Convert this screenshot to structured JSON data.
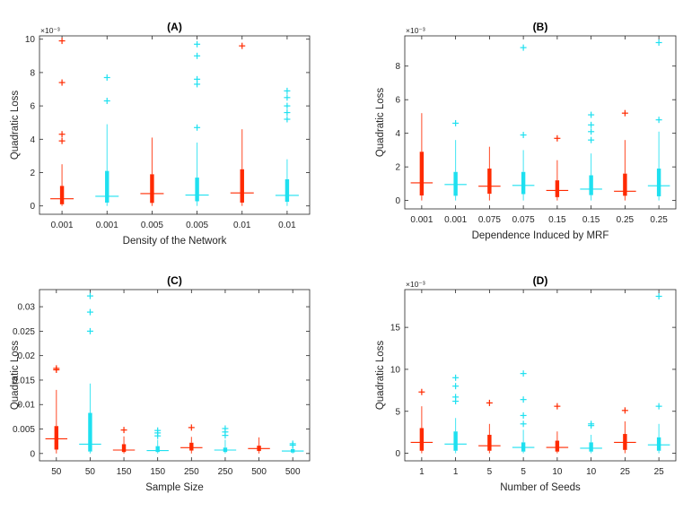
{
  "colors": {
    "red": "#ff2a00",
    "cyan": "#1ee0f0",
    "axis": "#262626",
    "background": "#ffffff"
  },
  "chart_data": [
    {
      "type": "box",
      "title": "(A)",
      "xlabel": "Density of the Network",
      "ylabel": "Quadratic Loss",
      "exponent_label": "×10⁻³",
      "ylim": [
        -0.0005,
        0.0102
      ],
      "yticks": [
        0,
        0.002,
        0.004,
        0.006,
        0.008,
        0.01
      ],
      "ytick_labels": [
        "0",
        "2",
        "4",
        "6",
        "8",
        "10"
      ],
      "categories": [
        "0.001",
        "0.001",
        "0.005",
        "0.005",
        "0.01",
        "0.01"
      ],
      "series_color_keys": [
        "red",
        "cyan",
        "red",
        "cyan",
        "red",
        "cyan"
      ],
      "boxes": [
        {
          "q1": 0.0001,
          "median": 0.00043,
          "q3": 0.0012,
          "wlo": 0.0,
          "whi": 0.0025,
          "outliers": [
            0.0099,
            0.0074,
            0.0043,
            0.0039
          ]
        },
        {
          "q1": 0.0002,
          "median": 0.00058,
          "q3": 0.0021,
          "wlo": 0.0,
          "whi": 0.0049,
          "outliers": [
            0.0077,
            0.0063
          ]
        },
        {
          "q1": 0.00018,
          "median": 0.00074,
          "q3": 0.0019,
          "wlo": 0.0,
          "whi": 0.0041,
          "outliers": []
        },
        {
          "q1": 0.00028,
          "median": 0.00065,
          "q3": 0.0017,
          "wlo": 0.0,
          "whi": 0.0038,
          "outliers": [
            0.0097,
            0.009,
            0.0076,
            0.0073,
            0.0047
          ]
        },
        {
          "q1": 0.0002,
          "median": 0.00078,
          "q3": 0.0022,
          "wlo": 0.0,
          "whi": 0.0046,
          "outliers": [
            0.0096
          ]
        },
        {
          "q1": 0.00025,
          "median": 0.00063,
          "q3": 0.0016,
          "wlo": 0.0,
          "whi": 0.0028,
          "outliers": [
            0.0069,
            0.0065,
            0.006,
            0.0056,
            0.0052
          ]
        }
      ]
    },
    {
      "type": "box",
      "title": "(B)",
      "xlabel": "Dependence Induced by MRF",
      "ylabel": "Quadratic Loss",
      "exponent_label": "×10⁻³",
      "ylim": [
        -0.0005,
        0.0098
      ],
      "yticks": [
        0,
        0.002,
        0.004,
        0.006,
        0.008
      ],
      "ytick_labels": [
        "0",
        "2",
        "4",
        "6",
        "8"
      ],
      "categories": [
        "0.001",
        "0.001",
        "0.075",
        "0.075",
        "0.15",
        "0.15",
        "0.25",
        "0.25"
      ],
      "series_color_keys": [
        "red",
        "cyan",
        "red",
        "cyan",
        "red",
        "cyan",
        "red",
        "cyan"
      ],
      "boxes": [
        {
          "q1": 0.0003,
          "median": 0.00105,
          "q3": 0.0029,
          "wlo": 0.0,
          "whi": 0.0052,
          "outliers": []
        },
        {
          "q1": 0.00028,
          "median": 0.00095,
          "q3": 0.0017,
          "wlo": 0.0,
          "whi": 0.0036,
          "outliers": [
            0.0046
          ]
        },
        {
          "q1": 0.0004,
          "median": 0.00085,
          "q3": 0.0019,
          "wlo": 0.0,
          "whi": 0.0032,
          "outliers": []
        },
        {
          "q1": 0.00038,
          "median": 0.0009,
          "q3": 0.0017,
          "wlo": 0.0,
          "whi": 0.003,
          "outliers": [
            0.0091,
            0.0039
          ]
        },
        {
          "q1": 0.0002,
          "median": 0.0006,
          "q3": 0.0012,
          "wlo": 0.0,
          "whi": 0.0024,
          "outliers": [
            0.0037
          ]
        },
        {
          "q1": 0.00032,
          "median": 0.00068,
          "q3": 0.0015,
          "wlo": 0.0,
          "whi": 0.0028,
          "outliers": [
            0.0051,
            0.0045,
            0.0041,
            0.0036
          ]
        },
        {
          "q1": 0.00028,
          "median": 0.00055,
          "q3": 0.0016,
          "wlo": 0.0,
          "whi": 0.0036,
          "outliers": [
            0.0052
          ]
        },
        {
          "q1": 0.00025,
          "median": 0.00088,
          "q3": 0.0019,
          "wlo": 0.0,
          "whi": 0.0041,
          "outliers": [
            0.0094,
            0.0048
          ]
        }
      ]
    },
    {
      "type": "box",
      "title": "(C)",
      "xlabel": "Sample Size",
      "ylabel": "Quadratic Loss",
      "exponent_label": "",
      "ylim": [
        -0.0015,
        0.0335
      ],
      "yticks": [
        0,
        0.005,
        0.01,
        0.015,
        0.02,
        0.025,
        0.03
      ],
      "ytick_labels": [
        "0",
        "0.005",
        "0.01",
        "0.015",
        "0.02",
        "0.025",
        "0.03"
      ],
      "categories": [
        "50",
        "50",
        "150",
        "150",
        "250",
        "250",
        "500",
        "500"
      ],
      "series_color_keys": [
        "red",
        "cyan",
        "red",
        "cyan",
        "red",
        "cyan",
        "red",
        "cyan"
      ],
      "boxes": [
        {
          "q1": 0.0008,
          "median": 0.003,
          "q3": 0.0056,
          "wlo": 0.0,
          "whi": 0.013,
          "outliers": [
            0.0174,
            0.0171
          ]
        },
        {
          "q1": 0.0004,
          "median": 0.0019,
          "q3": 0.0083,
          "wlo": 0.0,
          "whi": 0.0143,
          "outliers": [
            0.0322,
            0.0289,
            0.025
          ]
        },
        {
          "q1": 0.0003,
          "median": 0.0007,
          "q3": 0.0019,
          "wlo": 0.0,
          "whi": 0.0035,
          "outliers": [
            0.0048
          ]
        },
        {
          "q1": 0.0003,
          "median": 0.0006,
          "q3": 0.0015,
          "wlo": 0.0,
          "whi": 0.0028,
          "outliers": [
            0.0047,
            0.0042,
            0.0036
          ]
        },
        {
          "q1": 0.0006,
          "median": 0.0012,
          "q3": 0.0022,
          "wlo": 0.0,
          "whi": 0.0034,
          "outliers": [
            0.0053
          ]
        },
        {
          "q1": 0.0003,
          "median": 0.0007,
          "q3": 0.0012,
          "wlo": 0.0,
          "whi": 0.0028,
          "outliers": [
            0.0051,
            0.0044,
            0.0037
          ]
        },
        {
          "q1": 0.0005,
          "median": 0.001,
          "q3": 0.0016,
          "wlo": 0.0,
          "whi": 0.0033,
          "outliers": []
        },
        {
          "q1": 0.0002,
          "median": 0.0005,
          "q3": 0.0009,
          "wlo": 0.0,
          "whi": 0.0014,
          "outliers": [
            0.002,
            0.0017
          ]
        }
      ]
    },
    {
      "type": "box",
      "title": "(D)",
      "xlabel": "Number of Seeds",
      "ylabel": "Quadratic Loss",
      "exponent_label": "×10⁻³",
      "ylim": [
        -0.0009,
        0.0195
      ],
      "yticks": [
        0,
        0.005,
        0.01,
        0.015
      ],
      "ytick_labels": [
        "0",
        "5",
        "10",
        "15"
      ],
      "categories": [
        "1",
        "1",
        "5",
        "5",
        "10",
        "10",
        "25",
        "25"
      ],
      "series_color_keys": [
        "red",
        "cyan",
        "red",
        "cyan",
        "red",
        "cyan",
        "red",
        "cyan"
      ],
      "boxes": [
        {
          "q1": 0.0003,
          "median": 0.0013,
          "q3": 0.003,
          "wlo": 0.0,
          "whi": 0.0056,
          "outliers": [
            0.0073
          ]
        },
        {
          "q1": 0.0003,
          "median": 0.0011,
          "q3": 0.0026,
          "wlo": 0.0,
          "whi": 0.0042,
          "outliers": [
            0.009,
            0.008,
            0.0067,
            0.0062
          ]
        },
        {
          "q1": 0.0003,
          "median": 0.0009,
          "q3": 0.0022,
          "wlo": 0.0,
          "whi": 0.0035,
          "outliers": [
            0.006
          ]
        },
        {
          "q1": 0.0002,
          "median": 0.0007,
          "q3": 0.0013,
          "wlo": 0.0,
          "whi": 0.0028,
          "outliers": [
            0.0095,
            0.0064,
            0.0045,
            0.0035
          ]
        },
        {
          "q1": 0.0002,
          "median": 0.0007,
          "q3": 0.0015,
          "wlo": 0.0,
          "whi": 0.0026,
          "outliers": [
            0.0056
          ]
        },
        {
          "q1": 0.0002,
          "median": 0.0006,
          "q3": 0.0013,
          "wlo": 0.0,
          "whi": 0.0022,
          "outliers": [
            0.0035,
            0.0033
          ]
        },
        {
          "q1": 0.0004,
          "median": 0.0013,
          "q3": 0.0023,
          "wlo": 0.0,
          "whi": 0.0038,
          "outliers": [
            0.0051
          ]
        },
        {
          "q1": 0.0003,
          "median": 0.001,
          "q3": 0.0019,
          "wlo": 0.0,
          "whi": 0.0035,
          "outliers": [
            0.0187,
            0.0056
          ]
        }
      ]
    }
  ]
}
